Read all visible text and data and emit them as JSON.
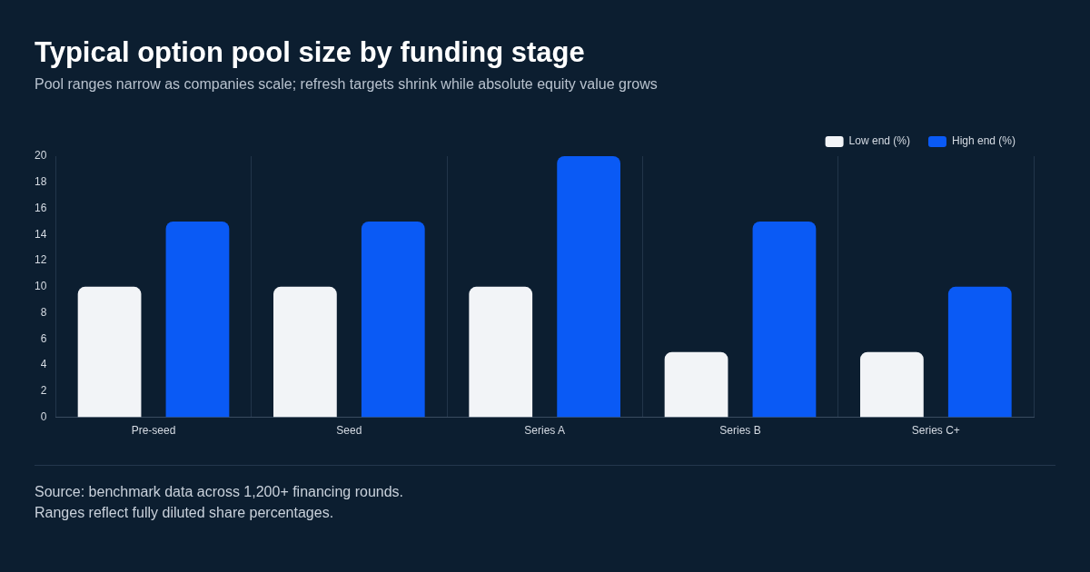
{
  "chart_data": {
    "type": "bar",
    "title": "Typical option pool size by funding stage",
    "subtitle": "Pool ranges narrow as companies scale; refresh targets shrink while absolute equity value grows",
    "categories": [
      "Pre-seed",
      "Seed",
      "Series A",
      "Series B",
      "Series C+"
    ],
    "series": [
      {
        "name": "Low end (%)",
        "color": "#f2f4f7",
        "values": [
          10,
          10,
          10,
          5,
          5
        ]
      },
      {
        "name": "High end (%)",
        "color": "#0a5af5",
        "values": [
          15,
          15,
          20,
          15,
          10
        ]
      }
    ],
    "ylim": [
      0,
      20
    ],
    "yticks": [
      0,
      2,
      4,
      6,
      8,
      10,
      12,
      14,
      16,
      18,
      20
    ],
    "grid": "x",
    "legend": "top right",
    "annotations": [
      "Source: benchmark data across 1,200+ financing rounds.",
      "Ranges reflect fully diluted share percentages."
    ]
  }
}
